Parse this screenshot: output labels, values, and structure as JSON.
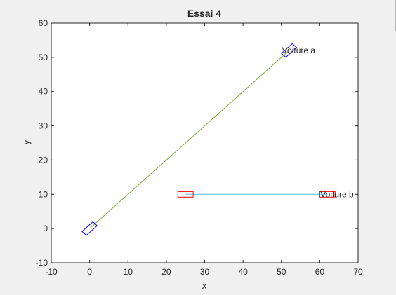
{
  "chart_data": {
    "type": "line",
    "title": "Essai 4",
    "xlabel": "x",
    "ylabel": "y",
    "xlim": [
      -10,
      70
    ],
    "ylim": [
      -10,
      60
    ],
    "xticks": [
      -10,
      0,
      10,
      20,
      30,
      40,
      50,
      60,
      70
    ],
    "yticks": [
      -10,
      0,
      10,
      20,
      30,
      40,
      50,
      60
    ],
    "grid": false,
    "series": [
      {
        "x": [
          0,
          52
        ],
        "y": [
          0,
          52
        ],
        "color": "#77ac30"
      },
      {
        "x": [
          25,
          62
        ],
        "y": [
          10,
          10
        ],
        "color": "#4dbeee"
      }
    ],
    "vehicles": [
      {
        "x": 0,
        "y": 0,
        "angle_deg": 45,
        "length": 4,
        "width": 1.6,
        "color": "#0000ff",
        "label": ""
      },
      {
        "x": 52,
        "y": 52,
        "angle_deg": 45,
        "length": 4,
        "width": 1.6,
        "color": "#0000ff",
        "label": "Voiture a"
      },
      {
        "x": 25,
        "y": 10,
        "angle_deg": 0,
        "length": 4,
        "width": 1.6,
        "color": "#ff0000",
        "label": ""
      },
      {
        "x": 62,
        "y": 10,
        "angle_deg": 0,
        "length": 4,
        "width": 1.6,
        "color": "#ff0000",
        "label": "Voiture b"
      }
    ]
  }
}
